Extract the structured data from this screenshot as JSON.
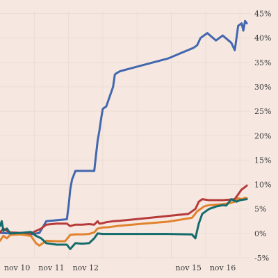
{
  "chart_data": {
    "type": "line",
    "title": "",
    "xlabel": "",
    "ylabel": "",
    "grid": true,
    "legend": "none",
    "x_ticks": [
      "nov 10",
      "nov 11",
      "nov 12",
      "nov 15",
      "nov 16"
    ],
    "x_tick_positions": [
      0.5,
      1.5,
      2.5,
      5.5,
      6.5
    ],
    "y_ticks": [
      -5,
      0,
      5,
      10,
      15,
      20,
      25,
      30,
      35,
      40,
      45
    ],
    "y_tick_labels": [
      "-5%",
      "0%",
      "5%",
      "10%",
      "15%",
      "20%",
      "25%",
      "30%",
      "35%",
      "40%",
      "45%"
    ],
    "xlim": [
      0,
      7.3
    ],
    "ylim": [
      -5,
      45.5
    ],
    "series": [
      {
        "color": "#4267ae",
        "x": [
          0.0,
          0.3,
          0.6,
          0.9,
          1.15,
          1.35,
          1.65,
          1.95,
          2.0,
          2.05,
          2.1,
          2.2,
          2.4,
          2.6,
          2.75,
          2.8,
          2.85,
          2.9,
          2.95,
          3.0,
          3.1,
          3.2,
          3.3,
          3.35,
          3.4,
          3.45,
          3.5,
          4.2,
          4.9,
          5.65,
          5.75,
          5.85,
          5.95,
          6.05,
          6.3,
          6.5,
          6.75,
          6.85,
          6.9,
          6.95,
          7.05,
          7.1,
          7.15,
          7.2
        ],
        "y": [
          0.1,
          0.0,
          0.0,
          -0.2,
          0.1,
          2.5,
          2.7,
          2.9,
          5.5,
          9.0,
          11.0,
          12.8,
          12.8,
          12.8,
          12.8,
          16.0,
          19.0,
          21.0,
          23.5,
          25.5,
          26.0,
          28.0,
          30.0,
          32.5,
          32.8,
          33.0,
          33.2,
          34.5,
          35.8,
          38.0,
          38.5,
          40.0,
          40.5,
          41.0,
          39.5,
          40.5,
          39.0,
          37.5,
          40.0,
          42.5,
          43.0,
          41.5,
          43.5,
          43.0
        ]
      },
      {
        "color": "#b63a3a",
        "x": [
          0.0,
          0.1,
          0.2,
          0.3,
          0.6,
          0.9,
          1.05,
          1.2,
          1.35,
          1.65,
          1.95,
          2.05,
          2.2,
          2.4,
          2.6,
          2.75,
          2.85,
          2.9,
          3.0,
          3.1,
          3.3,
          3.5,
          4.1,
          4.8,
          5.5,
          5.7,
          5.8,
          5.9,
          6.1,
          6.3,
          6.5,
          6.7,
          6.85,
          6.95,
          7.05,
          7.15,
          7.2
        ],
        "y": [
          0.2,
          1.0,
          0.5,
          0.2,
          0.1,
          0.0,
          0.5,
          1.0,
          1.8,
          2.0,
          2.0,
          1.5,
          1.8,
          1.8,
          1.9,
          1.8,
          2.5,
          2.0,
          2.1,
          2.3,
          2.5,
          2.6,
          3.0,
          3.5,
          4.0,
          5.0,
          6.5,
          7.0,
          6.8,
          6.8,
          6.8,
          6.9,
          7.0,
          8.0,
          9.0,
          9.5,
          9.8
        ]
      },
      {
        "color": "#e1832e",
        "x": [
          0.0,
          0.1,
          0.2,
          0.3,
          0.6,
          0.9,
          1.05,
          1.15,
          1.35,
          1.65,
          1.9,
          2.05,
          2.2,
          2.4,
          2.6,
          2.75,
          2.85,
          3.0,
          3.2,
          3.4,
          4.2,
          4.9,
          5.6,
          5.75,
          5.85,
          5.95,
          6.1,
          6.3,
          6.5,
          6.7,
          6.85,
          6.95,
          7.05,
          7.15,
          7.2
        ],
        "y": [
          -1.5,
          -0.5,
          -1.0,
          -0.3,
          -0.2,
          -0.5,
          -2.0,
          -2.5,
          -1.5,
          -1.6,
          -1.6,
          -0.3,
          -0.2,
          -0.2,
          -0.1,
          0.2,
          1.0,
          1.2,
          1.3,
          1.5,
          2.0,
          2.4,
          3.2,
          4.5,
          5.0,
          5.5,
          5.8,
          5.9,
          6.0,
          6.2,
          6.5,
          7.2,
          7.0,
          7.3,
          7.2
        ]
      },
      {
        "color": "#146b6b",
        "x": [
          0.0,
          0.05,
          0.1,
          0.2,
          0.3,
          0.6,
          0.9,
          1.05,
          1.2,
          1.35,
          1.65,
          1.95,
          2.05,
          2.2,
          2.4,
          2.6,
          2.75,
          2.85,
          3.0,
          3.2,
          3.5,
          4.2,
          4.9,
          5.6,
          5.7,
          5.8,
          5.9,
          6.1,
          6.3,
          6.5,
          6.6,
          6.75,
          6.9,
          7.0,
          7.1,
          7.2
        ],
        "y": [
          1.5,
          2.5,
          0.5,
          1.0,
          0.0,
          0.1,
          0.3,
          -0.5,
          -1.0,
          -2.0,
          -2.3,
          -2.3,
          -3.2,
          -2.0,
          -2.1,
          -2.0,
          -1.0,
          0.0,
          -0.1,
          -0.1,
          -0.1,
          -0.1,
          -0.1,
          -0.2,
          -1.0,
          2.0,
          4.0,
          5.0,
          5.5,
          5.8,
          5.7,
          7.0,
          6.5,
          6.8,
          6.9,
          7.0
        ]
      }
    ]
  }
}
